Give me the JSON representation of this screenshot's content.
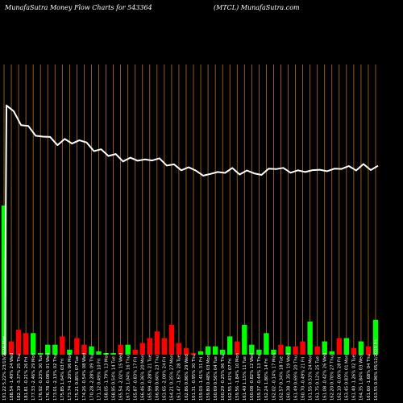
{
  "header": {
    "left_text": "MunafaSutra  Money Flow  Charts for 543364",
    "right_text": "(MTCL) MunafaSutra.com"
  },
  "chart_data": {
    "type": "bar",
    "title": "Money Flow Charts for 543364",
    "grid": "vertical",
    "colors": {
      "up": "#ff0000",
      "down": "#00ff00",
      "line": "#ffffff",
      "grid": "#b8702a"
    },
    "categories": [
      "163.55 0.96% 05/12/2025 Fri",
      "161.60 -1.68% 04 Thu",
      "164.35 1.84% 03 Wed",
      "161.40 -1.26% 02 Tue",
      "163.45 0.83% 01 Mon",
      "162.10 -0.06% 28 Fri",
      "162.20 0.70% 27 Thu",
      "161.08 -0.42% 26 Wed",
      "161.75 0.12% 25 Tue",
      "161.55 0.53% 24 Mon",
      "160.70 -0.49% 21 Fri",
      "161.49 0.69% 20 Thu",
      "160.38 -1.35% 19 Wed",
      "162.57 0.34% 18 Tue",
      "162.02 -0.14% 17 Mon",
      "162.24 1.80% 14 Fri",
      "159.37 -0.44% 13 Thu",
      "160.08 -0.82% 12 Wed",
      "161.40 1.15% 11 Tue",
      "159.56 -1.84% 10 Mon",
      "162.55 1.41% 07 Fri",
      "160.29 -0.25% 06 Thu",
      "160.69 0.56% 04 Tue",
      "159.80 0.48% 03 Mon",
      "159.03 -1.41% 31 Fri",
      "161.31 -0.95% 30 Thu",
      "162.86 0.86% 29 Wed",
      "161.47 -1.67% 28 Tue",
      "164.21 0.35% 27 Mon",
      "163.65 -2.00% 24 Fri",
      "166.98 0.60% 23 Thu",
      "165.99 -0.28% 21 Tue",
      "166.46 0.36% 20 Mon",
      "165.87 -0.83% 17 Fri",
      "167.26 1.04% 16 Thu",
      "165.54 -2.02% 15 Wed",
      "168.95 0.54% 14 Tue",
      "168.05 -1.79% 13 Mon",
      "171.12 0.49% 10 Fri",
      "170.28 -2.28% 09 Thu",
      "174.26 -0.54% 08 Wed",
      "175.21 0.85% 07 Tue",
      "173.74 -1.20% 06 Mon",
      "175.85 1.64% 03 Fri",
      "173.01 -2.13% 02 Thu",
      "176.78 -0.08% 01 Wed",
      "176.92 -0.23% 30 Tue",
      "177.33 -2.46% 29 Mon",
      "181.81 -0.21% 26 Fri",
      "182.19 -3.37% 25 Thu",
      "188.54 -1.40% 24 Wed",
      "191.22 5.22% 23/10/2025 Mon"
    ],
    "series": [
      {
        "values": [
          2.1,
          -0.5,
          0.8,
          -0.4,
          1.0,
          -1.0,
          0.2,
          0.8,
          -0.5,
          2.0,
          -0.8,
          -0.5,
          0.5,
          -0.6,
          0.3,
          1.3,
          0.3,
          0.6,
          1.8,
          -0.8,
          1.1,
          0.3,
          0.5,
          0.5,
          0.2,
          -0.1,
          -0.4,
          -0.7,
          -1.8,
          -1.0,
          -1.4,
          -1.0,
          -0.7,
          -0.3,
          0.6,
          -0.6,
          0.1,
          0.1,
          0.2,
          0.5,
          -0.6,
          -1.0,
          0.3,
          -1.1,
          0.6,
          0.6,
          0.1,
          1.3,
          -1.3,
          -1.5,
          -0.8,
          9.0
        ]
      },
      {
        "values": [
          163.55,
          161.6,
          164.35,
          161.4,
          163.45,
          162.1,
          162.2,
          161.08,
          161.75,
          161.55,
          160.7,
          161.49,
          160.38,
          162.57,
          162.02,
          162.24,
          159.37,
          160.08,
          161.4,
          159.56,
          162.55,
          160.29,
          160.69,
          159.8,
          159.03,
          161.31,
          162.86,
          161.47,
          164.21,
          163.65,
          166.98,
          165.99,
          166.46,
          165.87,
          167.26,
          165.54,
          168.95,
          168.05,
          171.12,
          170.28,
          174.26,
          175.21,
          173.74,
          175.85,
          173.01,
          176.78,
          176.92,
          177.33,
          181.81,
          182.19,
          188.54,
          191.22
        ]
      }
    ]
  }
}
